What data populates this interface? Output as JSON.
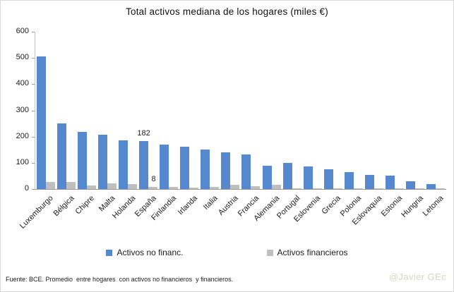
{
  "title": "Total activos mediana de los hogares (miles €)",
  "chart_data": {
    "type": "bar",
    "title": "Total activos mediana de los hogares (miles €)",
    "categories": [
      "Luxemburgo",
      "Bélgica",
      "Chipre",
      "Malta",
      "Holanda",
      "España",
      "Finlandia",
      "Irlanda",
      "Italia",
      "Austria",
      "Francia",
      "Alemania",
      "Portugal",
      "Eslovenia",
      "Grecia",
      "Polonia",
      "Eslovaquia",
      "Estonia",
      "Hungria",
      "Letonia"
    ],
    "series": [
      {
        "name": "Activos no financ.",
        "color": "#5588CE",
        "values": [
          506,
          250,
          218,
          207,
          186,
          182,
          170,
          162,
          151,
          140,
          133,
          89,
          100,
          86,
          76,
          66,
          54,
          51,
          29,
          18
        ]
      },
      {
        "name": "Activos financieros",
        "color": "#BFBFBF",
        "values": [
          28,
          26,
          13,
          22,
          20,
          8,
          7,
          5,
          9,
          15,
          12,
          17,
          4,
          3,
          4,
          3,
          4,
          2,
          3,
          2
        ]
      }
    ],
    "annotations": [
      {
        "series": 0,
        "index": 5,
        "text": "182"
      },
      {
        "series": 1,
        "index": 5,
        "text": "8"
      }
    ],
    "xlabel": "",
    "ylabel": "",
    "ylim": [
      0,
      600
    ],
    "y_ticks": [
      "600",
      "500",
      "400",
      "300",
      "200",
      "100",
      "0"
    ],
    "grid": false,
    "legend_position": "bottom"
  },
  "legend": {
    "items": [
      {
        "label": "Activos no financ.",
        "color": "#5588CE"
      },
      {
        "label": "Activos financieros",
        "color": "#BFBFBF"
      }
    ]
  },
  "footer": {
    "source": "Fuente: BCE. Promedio  entre hogares  con activos no financieros  y financieros.",
    "watermark": "@Javier GEc"
  },
  "colors": {
    "bar_blue": "#5588CE",
    "bar_gray": "#BFBFBF",
    "watermark_text": "#D8D4C2",
    "axis_line": "#9B9B9B"
  }
}
